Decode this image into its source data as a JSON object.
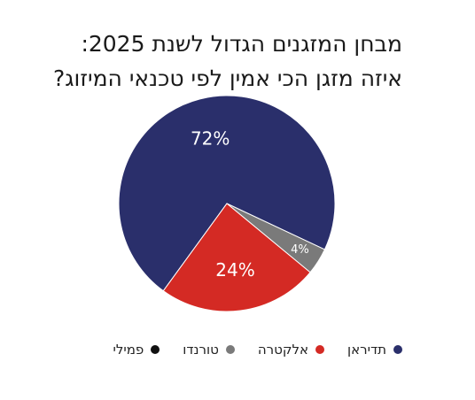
{
  "chart_data": {
    "type": "pie",
    "title_line1": "מבחן המזגנים הגדול לשנת 2025:",
    "title_line2": "איזה מזגן הכי אמין לפי טכנאי המיזוג?",
    "slices": [
      {
        "name": "תדיראן",
        "value": 72,
        "label": "72%",
        "color": "#2a2f6b"
      },
      {
        "name": "טורנדו",
        "value": 4,
        "label": "4%",
        "color": "#7a7a7a"
      },
      {
        "name": "אלקטרה",
        "value": 24,
        "label": "24%",
        "color": "#d42a24"
      }
    ],
    "legend": [
      {
        "name": "תדיראן",
        "color": "#2a2f6b"
      },
      {
        "name": "אלקטרה",
        "color": "#d42a24"
      },
      {
        "name": "טורנדו",
        "color": "#7a7a7a"
      },
      {
        "name": "פמילי",
        "color": "#111111"
      }
    ],
    "legend_position": "bottom"
  }
}
